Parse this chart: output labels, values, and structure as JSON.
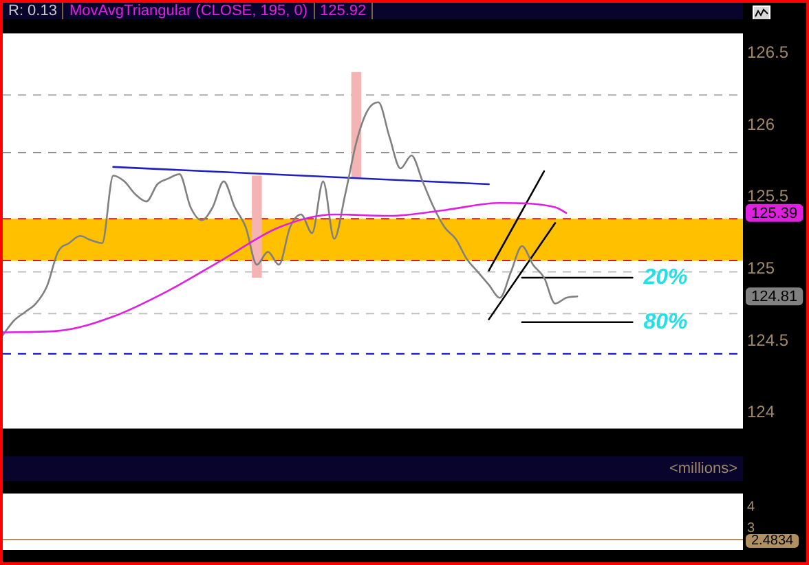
{
  "chart_data": [
    {
      "type": "line",
      "categories": [
        null,
        null,
        null,
        null,
        null,
        null,
        null,
        null,
        null,
        null,
        null,
        null,
        null,
        null,
        null,
        null,
        null,
        null,
        null,
        null,
        null,
        null,
        null,
        null,
        null,
        null,
        null,
        null,
        null,
        null,
        null,
        null,
        null,
        null,
        null,
        null,
        null,
        null,
        null,
        null,
        null,
        null,
        null,
        null,
        null,
        null,
        null,
        null,
        null,
        null,
        null,
        null,
        null,
        null,
        null,
        null,
        null,
        null,
        null,
        null,
        null,
        null,
        null,
        null,
        null,
        null,
        null,
        null
      ],
      "series": [
        {
          "type": "bar",
          "color": "#f4b4b4",
          "values": [
            null,
            null,
            null,
            null,
            null,
            null,
            null,
            null,
            null,
            null,
            null,
            null,
            null,
            null,
            null,
            null,
            null,
            null,
            null,
            null,
            null,
            null,
            null,
            0.71,
            null,
            null,
            null,
            null,
            null,
            null,
            null,
            null,
            0.74,
            null,
            null,
            null,
            null,
            null,
            null,
            null,
            null,
            null,
            null,
            null,
            null,
            null,
            null,
            null,
            null,
            null,
            null,
            null,
            null,
            null,
            null,
            null,
            null,
            null,
            null,
            null,
            null,
            null,
            null,
            null,
            null,
            null,
            null,
            null
          ],
          "base": [
            null,
            null,
            null,
            null,
            null,
            null,
            null,
            null,
            null,
            null,
            null,
            null,
            null,
            null,
            null,
            null,
            null,
            null,
            null,
            null,
            null,
            null,
            null,
            124.94,
            null,
            null,
            null,
            null,
            null,
            null,
            null,
            null,
            125.63,
            null,
            null,
            null,
            null,
            null,
            null,
            null,
            null,
            null,
            null,
            null,
            null,
            null,
            null,
            null,
            null,
            null,
            null,
            null,
            null,
            null,
            null,
            null,
            null,
            null,
            null,
            null,
            null,
            null,
            null,
            null,
            null,
            null,
            null,
            null
          ]
        },
        {
          "name": "MovAvgTriangular (CLOSE, 195, 0)",
          "color": "#e020e0",
          "values": [
            124.56,
            null,
            null,
            null,
            null,
            124.57,
            null,
            null,
            null,
            null,
            124.67,
            null,
            null,
            null,
            null,
            124.85,
            null,
            null,
            null,
            null,
            125.07,
            null,
            null,
            null,
            null,
            125.29,
            null,
            null,
            null,
            null,
            125.38,
            null,
            null,
            null,
            null,
            125.37,
            null,
            null,
            null,
            null,
            125.41,
            null,
            null,
            null,
            null,
            125.46,
            null,
            null,
            null,
            null,
            125.43,
            125.39,
            null,
            null,
            null,
            null,
            null,
            null,
            null,
            null,
            null,
            null,
            null,
            null,
            null,
            null,
            null,
            null
          ]
        },
        {
          "color": "#808080",
          "values": [
            124.54,
            124.64,
            124.7,
            124.76,
            124.88,
            125.12,
            125.18,
            125.23,
            125.2,
            125.18,
            125.65,
            125.61,
            125.52,
            125.47,
            125.59,
            125.63,
            125.66,
            125.43,
            125.34,
            125.43,
            125.61,
            125.43,
            125.29,
            125.03,
            125.12,
            125.03,
            125.29,
            125.38,
            125.25,
            125.61,
            125.21,
            125.52,
            125.88,
            126.1,
            126.16,
            125.92,
            125.7,
            125.79,
            125.61,
            125.43,
            125.29,
            125.21,
            125.07,
            124.98,
            124.89,
            124.8,
            124.98,
            125.16,
            125.03,
            124.94,
            124.76,
            124.8,
            124.81,
            null,
            null,
            null,
            null,
            null,
            null,
            null,
            null,
            null,
            null,
            null,
            null,
            null,
            null,
            null
          ]
        },
        {
          "color": "#2020c0",
          "values": [
            null,
            null,
            null,
            null,
            null,
            null,
            null,
            null,
            null,
            null,
            125.71,
            null,
            null,
            null,
            null,
            null,
            null,
            null,
            null,
            null,
            null,
            null,
            null,
            null,
            null,
            null,
            null,
            null,
            null,
            null,
            null,
            null,
            null,
            null,
            null,
            null,
            null,
            null,
            null,
            null,
            null,
            null,
            null,
            null,
            125.59,
            null,
            null,
            null,
            null,
            null,
            null,
            null,
            null,
            null,
            null,
            null,
            null,
            null,
            null,
            null,
            null,
            null,
            null,
            null,
            null,
            null,
            null,
            null
          ]
        },
        {
          "color": "#000000",
          "values": [
            null,
            null,
            null,
            null,
            null,
            null,
            null,
            null,
            null,
            null,
            null,
            null,
            null,
            null,
            null,
            null,
            null,
            null,
            null,
            null,
            null,
            null,
            null,
            null,
            null,
            null,
            null,
            null,
            null,
            null,
            null,
            null,
            null,
            null,
            null,
            null,
            null,
            null,
            null,
            null,
            null,
            null,
            null,
            null,
            124.99,
            null,
            null,
            null,
            null,
            125.68,
            null,
            null,
            null,
            null,
            null,
            null,
            null,
            null,
            null,
            null,
            null,
            null,
            null,
            null,
            null,
            null,
            null,
            null
          ]
        },
        {
          "color": "#000000",
          "values": [
            null,
            null,
            null,
            null,
            null,
            null,
            null,
            null,
            null,
            null,
            null,
            null,
            null,
            null,
            null,
            null,
            null,
            null,
            null,
            null,
            null,
            null,
            null,
            null,
            null,
            null,
            null,
            null,
            null,
            null,
            null,
            null,
            null,
            null,
            null,
            null,
            null,
            null,
            null,
            null,
            null,
            null,
            null,
            null,
            124.65,
            null,
            null,
            null,
            null,
            null,
            125.32,
            null,
            null,
            null,
            null,
            null,
            null,
            null,
            null,
            null,
            null,
            null,
            null,
            null,
            null,
            null,
            null,
            null
          ]
        },
        {
          "name": "20%",
          "color": "#000000",
          "values": [
            null,
            null,
            null,
            null,
            null,
            null,
            null,
            null,
            null,
            null,
            null,
            null,
            null,
            null,
            null,
            null,
            null,
            null,
            null,
            null,
            null,
            null,
            null,
            null,
            null,
            null,
            null,
            null,
            null,
            null,
            null,
            null,
            null,
            null,
            null,
            null,
            null,
            null,
            null,
            null,
            null,
            null,
            null,
            null,
            null,
            null,
            null,
            124.94,
            null,
            null,
            null,
            null,
            null,
            null,
            null,
            null,
            null,
            124.94,
            null,
            null,
            null,
            null,
            null,
            null,
            null,
            null,
            null,
            null
          ]
        },
        {
          "name": "80%",
          "color": "#000000",
          "values": [
            null,
            null,
            null,
            null,
            null,
            null,
            null,
            null,
            null,
            null,
            null,
            null,
            null,
            null,
            null,
            null,
            null,
            null,
            null,
            null,
            null,
            null,
            null,
            null,
            null,
            null,
            null,
            null,
            null,
            null,
            null,
            null,
            null,
            null,
            null,
            null,
            null,
            null,
            null,
            null,
            null,
            null,
            null,
            null,
            null,
            null,
            null,
            124.63,
            null,
            null,
            null,
            null,
            null,
            null,
            null,
            null,
            null,
            124.63,
            null,
            null,
            null,
            null,
            null,
            null,
            null,
            null,
            null,
            null
          ]
        }
      ],
      "bands": [
        {
          "axis": "y",
          "from": 125.06,
          "to": 125.35,
          "color": "#ffc000"
        }
      ],
      "ref_lines": [
        {
          "axis": "y",
          "value": 126.21,
          "color": "#b0b0b0",
          "line_style": "dashed"
        },
        {
          "axis": "y",
          "value": 125.81,
          "color": "#909090",
          "line_style": "dashed"
        },
        {
          "axis": "y",
          "value": 125.35,
          "color": "#cc2200",
          "line_style": "dashed"
        },
        {
          "axis": "y",
          "value": 125.06,
          "color": "#cc2200",
          "line_style": "dashed"
        },
        {
          "axis": "y",
          "value": 124.98,
          "color": "#c0c0c0",
          "line_style": "dashed"
        },
        {
          "axis": "y",
          "value": 124.69,
          "color": "#c0c0c0",
          "line_style": "dashed"
        },
        {
          "axis": "y",
          "value": 124.41,
          "color": "#0000c0",
          "line_style": "dashed"
        }
      ],
      "annotations": [
        "R: 0.13",
        "125.92",
        {
          "text": "125.39",
          "y": 125.39
        },
        {
          "text": "124.81",
          "y": 124.81
        }
      ],
      "ylim": [
        123.89,
        126.64
      ],
      "yticks": [
        124,
        124.5,
        125,
        125.5,
        126,
        126.5
      ],
      "grid": false,
      "legend": false
    },
    {
      "type": "line",
      "ylabel": "<millions>",
      "categories": [
        null,
        null
      ],
      "ref_lines": [
        {
          "axis": "y",
          "value": 2.4834,
          "label": "2.4834",
          "color": "#b09060",
          "line_style": "solid"
        }
      ],
      "ylim": [
        2.0,
        4.64
      ],
      "yticks": [
        4,
        3
      ],
      "grid": false,
      "legend": false
    }
  ]
}
